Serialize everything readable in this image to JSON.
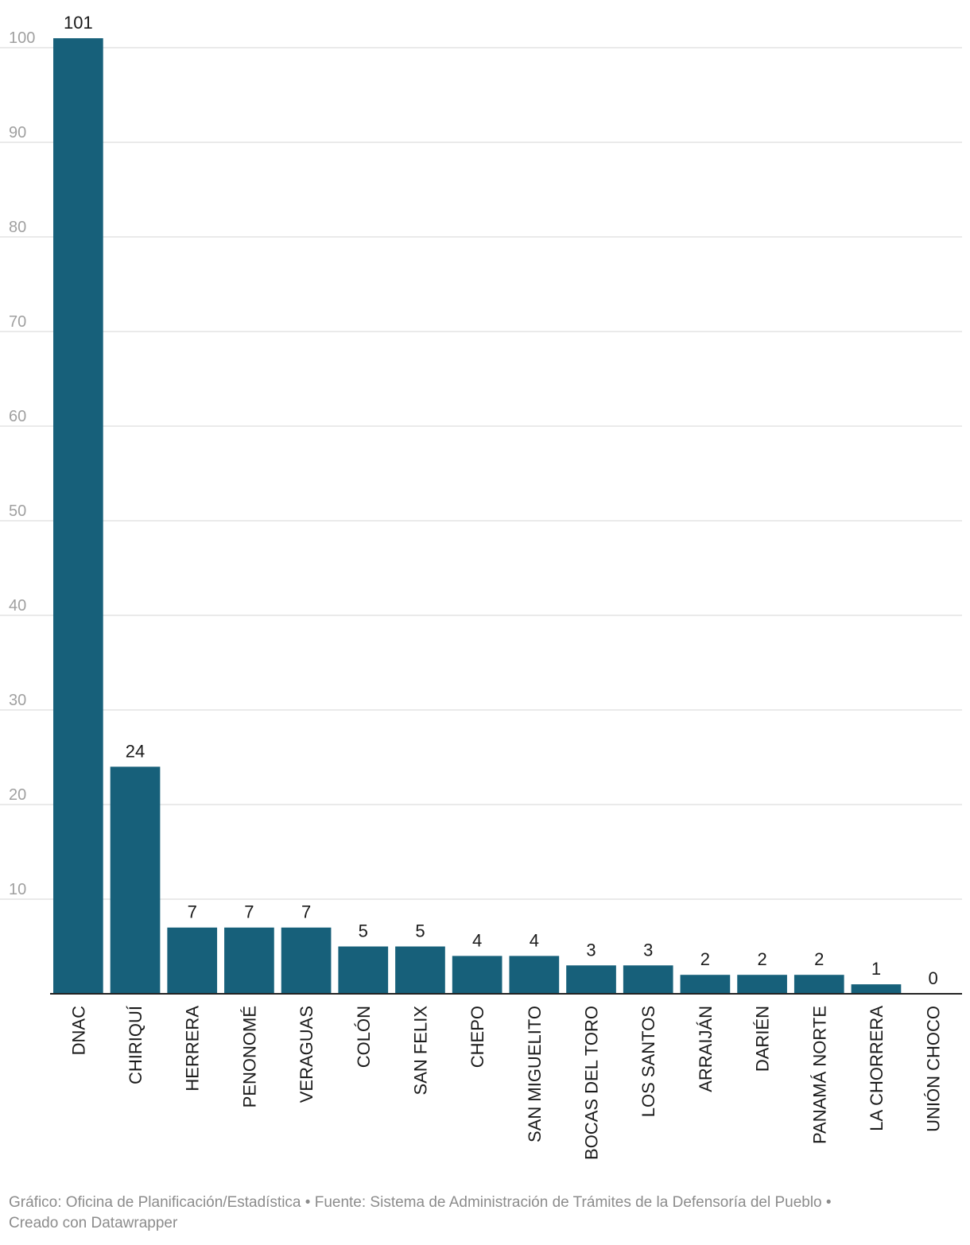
{
  "chart_data": {
    "type": "bar",
    "categories": [
      "DNAC",
      "CHIRIQUÍ",
      "HERRERA",
      "PENONOMÉ",
      "VERAGUAS",
      "COLÓN",
      "SAN FELIX",
      "CHEPO",
      "SAN MIGUELITO",
      "BOCAS DEL TORO",
      "LOS SANTOS",
      "ARRAIJÁN",
      "DARIÉN",
      "PANAMÁ NORTE",
      "LA CHORRERA",
      "UNIÓN CHOCO"
    ],
    "values": [
      101,
      24,
      7,
      7,
      7,
      5,
      5,
      4,
      4,
      3,
      3,
      2,
      2,
      2,
      1,
      0
    ],
    "title": "",
    "xlabel": "",
    "ylabel": "",
    "ylim": [
      0,
      100
    ],
    "yticks": [
      10,
      20,
      30,
      40,
      50,
      60,
      70,
      80,
      90,
      100
    ],
    "grid": true,
    "bar_color": "#17607a"
  },
  "footer": {
    "line1": "Gráfico: Oficina de Planificación/Estadística • Fuente: Sistema de Administración de Trámites de la Defensoría del Pueblo •",
    "line2": "Creado con Datawrapper"
  }
}
